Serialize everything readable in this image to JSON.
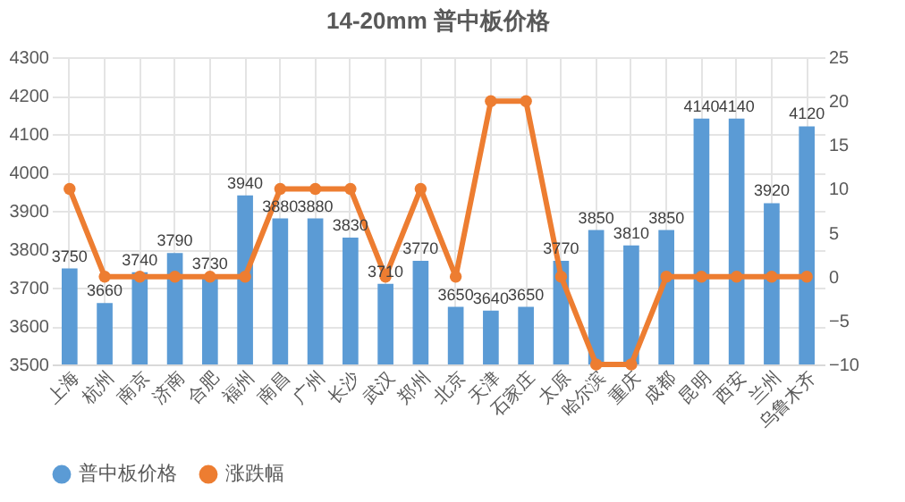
{
  "chart_data": {
    "type": "bar",
    "title": "14-20mm 普中板价格",
    "categories": [
      "上海",
      "杭州",
      "南京",
      "济南",
      "合肥",
      "福州",
      "南昌",
      "广州",
      "长沙",
      "武汉",
      "郑州",
      "北京",
      "天津",
      "石家庄",
      "太原",
      "哈尔滨",
      "重庆",
      "成都",
      "昆明",
      "西安",
      "兰州",
      "乌鲁木齐"
    ],
    "series": [
      {
        "name": "普中板价格",
        "type": "bar",
        "color": "#5b9bd5",
        "values": [
          3750,
          3660,
          3740,
          3790,
          3730,
          3940,
          3880,
          3880,
          3830,
          3710,
          3770,
          3650,
          3640,
          3650,
          3770,
          3850,
          3810,
          3850,
          4140,
          4140,
          3920,
          4120
        ],
        "value_labels": [
          "3750",
          "3660",
          "3740",
          "3790",
          "3730",
          "3940",
          "3880",
          "3880",
          "3830",
          "3710",
          "3770",
          "3650",
          "3640",
          "3650",
          "3770",
          "3850",
          "3810",
          "3850",
          "4140",
          "4140",
          "3920",
          "4120"
        ]
      },
      {
        "name": "涨跌幅",
        "type": "line",
        "axis": "y2",
        "color": "#ed7d31",
        "marker": "circle",
        "values": [
          10,
          0,
          0,
          0,
          0,
          0,
          10,
          10,
          10,
          0,
          10,
          0,
          20,
          20,
          0,
          -10,
          -10,
          0,
          0,
          0,
          0,
          0
        ]
      }
    ],
    "ylim": [
      3500,
      4300
    ],
    "yticks": [
      3500,
      3600,
      3700,
      3800,
      3900,
      4000,
      4100,
      4200,
      4300
    ],
    "y2lim": [
      -10,
      25
    ],
    "y2ticks": [
      -10,
      -5,
      0,
      5,
      10,
      15,
      20,
      25
    ],
    "grid": true,
    "legend": "bottom"
  }
}
